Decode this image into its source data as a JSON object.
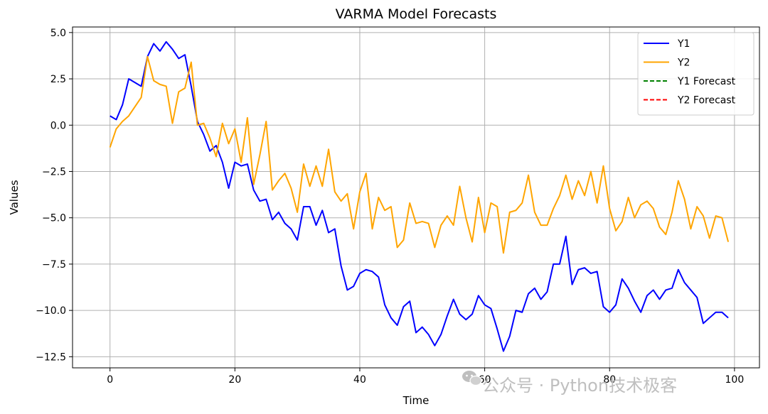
{
  "chart_data": {
    "type": "line",
    "title": "VARMA Model Forecasts",
    "xlabel": "Time",
    "ylabel": "Values",
    "xlim": [
      -6,
      104
    ],
    "ylim": [
      -13.1,
      5.3
    ],
    "xticks": [
      0,
      20,
      40,
      60,
      80,
      100
    ],
    "xtick_labels": [
      "0",
      "20",
      "40",
      "60",
      "80",
      "100"
    ],
    "yticks": [
      5.0,
      2.5,
      0.0,
      -2.5,
      -5.0,
      -7.5,
      -10.0,
      -12.5
    ],
    "ytick_labels": [
      "5.0",
      "2.5",
      "0.0",
      "−2.5",
      "−5.0",
      "−7.5",
      "−10.0",
      "−12.5"
    ],
    "grid": true,
    "legend_position": "top-right",
    "series": [
      {
        "name": "Y1",
        "color": "#0000ff",
        "style": "solid",
        "x": [
          0,
          1,
          2,
          3,
          4,
          5,
          6,
          7,
          8,
          9,
          10,
          11,
          12,
          13,
          14,
          15,
          16,
          17,
          18,
          19,
          20,
          21,
          22,
          23,
          24,
          25,
          26,
          27,
          28,
          29,
          30,
          31,
          32,
          33,
          34,
          35,
          36,
          37,
          38,
          39,
          40,
          41,
          42,
          43,
          44,
          45,
          46,
          47,
          48,
          49,
          50,
          51,
          52,
          53,
          54,
          55,
          56,
          57,
          58,
          59,
          60,
          61,
          62,
          63,
          64,
          65,
          66,
          67,
          68,
          69,
          70,
          71,
          72,
          73,
          74,
          75,
          76,
          77,
          78,
          79,
          80,
          81,
          82,
          83,
          84,
          85,
          86,
          87,
          88,
          89,
          90,
          91,
          92,
          93,
          94,
          95,
          96,
          97,
          98,
          99
        ],
        "values": [
          0.5,
          0.3,
          1.1,
          2.5,
          2.3,
          2.1,
          3.7,
          4.4,
          4.0,
          4.5,
          4.1,
          3.6,
          3.8,
          2.1,
          0.2,
          -0.5,
          -1.4,
          -1.1,
          -2.0,
          -3.4,
          -2.0,
          -2.2,
          -2.1,
          -3.5,
          -4.1,
          -4.0,
          -5.1,
          -4.7,
          -5.3,
          -5.6,
          -6.2,
          -4.4,
          -4.4,
          -5.4,
          -4.6,
          -5.8,
          -5.6,
          -7.6,
          -8.9,
          -8.7,
          -8.0,
          -7.8,
          -7.9,
          -8.2,
          -9.7,
          -10.4,
          -10.8,
          -9.8,
          -9.5,
          -11.2,
          -10.9,
          -11.3,
          -11.9,
          -11.3,
          -10.3,
          -9.4,
          -10.2,
          -10.5,
          -10.2,
          -9.2,
          -9.7,
          -9.9,
          -11.0,
          -12.2,
          -11.4,
          -10.0,
          -10.1,
          -9.1,
          -8.8,
          -9.4,
          -9.0,
          -7.5,
          -7.5,
          -6.0,
          -8.6,
          -7.8,
          -7.7,
          -8.0,
          -7.9,
          -9.8,
          -10.1,
          -9.7,
          -8.3,
          -8.8,
          -9.5,
          -10.1,
          -9.2,
          -8.9,
          -9.4,
          -8.9,
          -8.8,
          -7.8,
          -8.5,
          -8.9,
          -9.3,
          -10.7,
          -10.4,
          -10.1,
          -10.1,
          -10.4
        ]
      },
      {
        "name": "Y2",
        "color": "#ffa500",
        "style": "solid",
        "x": [
          0,
          1,
          2,
          3,
          4,
          5,
          6,
          7,
          8,
          9,
          10,
          11,
          12,
          13,
          14,
          15,
          16,
          17,
          18,
          19,
          20,
          21,
          22,
          23,
          24,
          25,
          26,
          27,
          28,
          29,
          30,
          31,
          32,
          33,
          34,
          35,
          36,
          37,
          38,
          39,
          40,
          41,
          42,
          43,
          44,
          45,
          46,
          47,
          48,
          49,
          50,
          51,
          52,
          53,
          54,
          55,
          56,
          57,
          58,
          59,
          60,
          61,
          62,
          63,
          64,
          65,
          66,
          67,
          68,
          69,
          70,
          71,
          72,
          73,
          74,
          75,
          76,
          77,
          78,
          79,
          80,
          81,
          82,
          83,
          84,
          85,
          86,
          87,
          88,
          89,
          90,
          91,
          92,
          93,
          94,
          95,
          96,
          97,
          98,
          99
        ],
        "values": [
          -1.2,
          -0.2,
          0.2,
          0.5,
          1.0,
          1.5,
          3.7,
          2.4,
          2.2,
          2.1,
          0.1,
          1.8,
          2.0,
          3.4,
          0.0,
          0.1,
          -0.7,
          -1.7,
          0.1,
          -1.0,
          -0.2,
          -2.0,
          0.4,
          -3.2,
          -1.6,
          0.2,
          -3.5,
          -3.0,
          -2.6,
          -3.4,
          -4.7,
          -2.1,
          -3.3,
          -2.2,
          -3.3,
          -1.3,
          -3.6,
          -4.1,
          -3.7,
          -5.6,
          -3.6,
          -2.6,
          -5.6,
          -3.9,
          -4.6,
          -4.4,
          -6.6,
          -6.2,
          -4.2,
          -5.3,
          -5.2,
          -5.3,
          -6.6,
          -5.4,
          -4.9,
          -5.4,
          -3.3,
          -5.0,
          -6.3,
          -3.9,
          -5.8,
          -4.2,
          -4.4,
          -6.9,
          -4.7,
          -4.6,
          -4.2,
          -2.7,
          -4.7,
          -5.4,
          -5.4,
          -4.5,
          -3.8,
          -2.7,
          -4.0,
          -3.0,
          -3.8,
          -2.5,
          -4.2,
          -2.2,
          -4.5,
          -5.7,
          -5.2,
          -3.9,
          -5.0,
          -4.3,
          -4.1,
          -4.5,
          -5.5,
          -5.9,
          -4.7,
          -3.0,
          -4.0,
          -5.6,
          -4.4,
          -4.9,
          -6.1,
          -4.9,
          -5.0,
          -6.3
        ]
      },
      {
        "name": "Y1 Forecast",
        "color": "#008000",
        "style": "dashed",
        "x": [],
        "values": []
      },
      {
        "name": "Y2 Forecast",
        "color": "#ff0000",
        "style": "dashed",
        "x": [],
        "values": []
      }
    ]
  },
  "watermark": {
    "text": "公众号 · Python技术极客"
  }
}
